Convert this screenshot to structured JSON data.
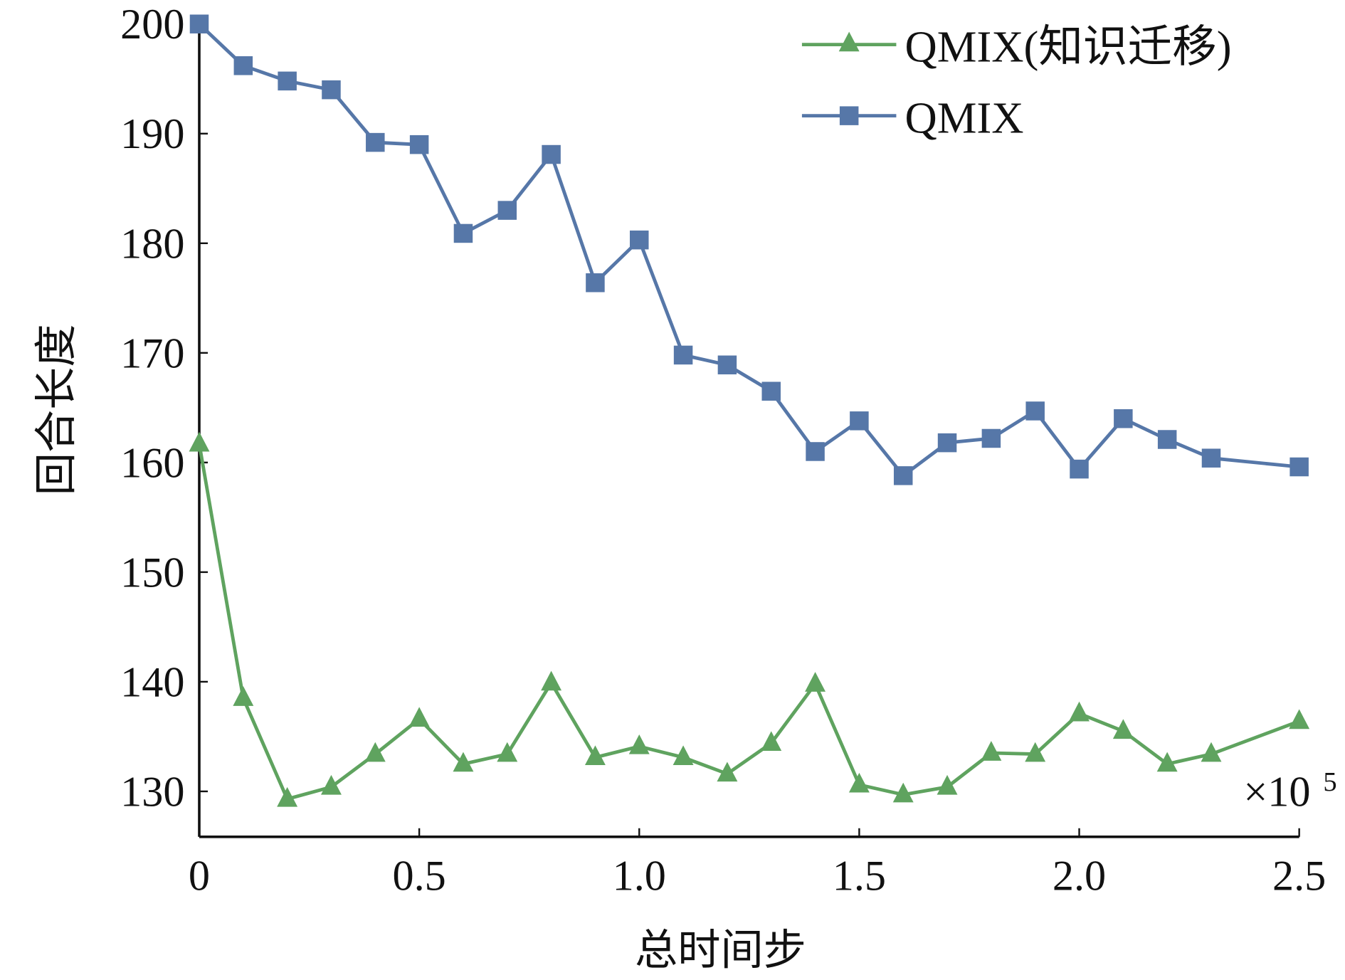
{
  "chart_data": {
    "type": "line",
    "title": "",
    "xlabel": "总时间步",
    "ylabel": "回合长度",
    "x_multiplier_label": "×10",
    "x_multiplier_exp": "5",
    "xlim": [
      0,
      2.5
    ],
    "ylim": [
      125.5,
      202
    ],
    "xticks": [
      0,
      0.5,
      1.0,
      1.5,
      2.0,
      2.5
    ],
    "xtick_labels": [
      "0",
      "0.5",
      "1.0",
      "1.5",
      "2.0",
      "2.5"
    ],
    "yticks": [
      130,
      140,
      150,
      160,
      170,
      180,
      190,
      200
    ],
    "ytick_labels": [
      "130",
      "140",
      "150",
      "160",
      "170",
      "180",
      "190",
      "200"
    ],
    "grid": false,
    "legend_position": "top-right",
    "x": [
      0,
      0.1,
      0.2,
      0.3,
      0.4,
      0.5,
      0.6,
      0.7,
      0.8,
      0.9,
      1.0,
      1.1,
      1.2,
      1.3,
      1.4,
      1.5,
      1.6,
      1.7,
      1.8,
      1.9,
      2.0,
      2.1,
      2.2,
      2.3,
      2.5
    ],
    "series": [
      {
        "name": "QMIX(知识迁移)",
        "color": "#5fa35f",
        "marker": "triangle",
        "values": [
          161.7,
          138.5,
          129.3,
          130.4,
          133.4,
          136.6,
          132.5,
          133.4,
          139.9,
          133.1,
          134.1,
          133.1,
          131.6,
          134.4,
          139.8,
          130.6,
          129.7,
          130.4,
          133.5,
          133.4,
          137.1,
          135.5,
          132.5,
          133.4,
          136.4
        ]
      },
      {
        "name": "QMIX",
        "color": "#5677a8",
        "marker": "square",
        "values": [
          200,
          196.2,
          194.8,
          194.0,
          189.2,
          189.0,
          180.9,
          183.0,
          188.1,
          176.4,
          180.3,
          169.8,
          168.9,
          166.5,
          161.0,
          163.8,
          158.8,
          161.8,
          162.2,
          164.7,
          159.4,
          164.0,
          162.1,
          160.4,
          159.6
        ]
      }
    ]
  }
}
